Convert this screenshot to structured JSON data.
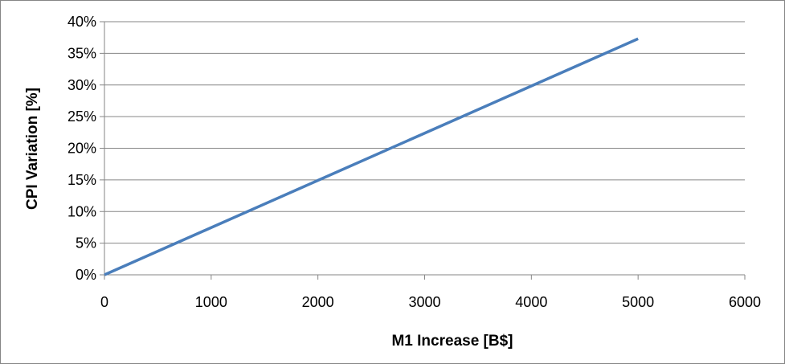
{
  "chart_data": {
    "type": "line",
    "title": "",
    "xlabel": "M1 Increase [B$]",
    "ylabel": "CPI Variation [%]",
    "xlim": [
      0,
      6000
    ],
    "ylim": [
      0,
      0.4
    ],
    "x_ticks": [
      0,
      1000,
      2000,
      3000,
      4000,
      5000,
      6000
    ],
    "x_tick_labels": [
      "0",
      "1000",
      "2000",
      "3000",
      "4000",
      "5000",
      "6000"
    ],
    "y_ticks": [
      0,
      0.05,
      0.1,
      0.15,
      0.2,
      0.25,
      0.3,
      0.35,
      0.4
    ],
    "y_tick_labels": [
      "0%",
      "5%",
      "10%",
      "15%",
      "20%",
      "25%",
      "30%",
      "35%",
      "40%"
    ],
    "grid": "horizontal",
    "legend": "none",
    "series": [
      {
        "color": "#4a7ebb",
        "x": [
          0,
          1000,
          2000,
          3000,
          4000,
          5000
        ],
        "y": [
          0,
          0.0746,
          0.1492,
          0.2238,
          0.2984,
          0.373
        ]
      }
    ],
    "colors": {
      "gridline": "#868686",
      "axis": "#868686",
      "line": "#4a7ebb"
    }
  }
}
